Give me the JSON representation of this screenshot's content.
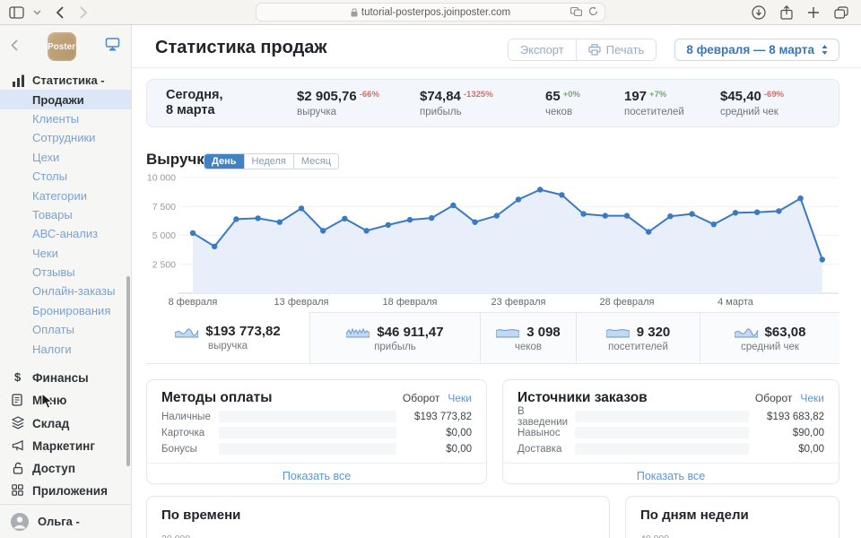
{
  "browser": {
    "url": "tutorial-posterpos.joinposter.com"
  },
  "sidebar": {
    "logo_text": "Poster",
    "menu_header": "Статистика -",
    "active_item": "Продажи",
    "menu_items": [
      "Продажи",
      "Клиенты",
      "Сотрудники",
      "Цехи",
      "Столы",
      "Категории",
      "Товары",
      "АВС-анализ",
      "Чеки",
      "Отзывы",
      "Онлайн-заказы",
      "Бронирования",
      "Оплаты",
      "Налоги"
    ],
    "sections": [
      "Финансы",
      "Меню",
      "Склад",
      "Маркетинг",
      "Доступ",
      "Приложения"
    ],
    "user_name": "Ольга -"
  },
  "header": {
    "title": "Статистика продаж",
    "export_label": "Экспорт",
    "print_label": "Печать",
    "date_range": "8 февраля — 8 марта"
  },
  "today": {
    "title_line1": "Сегодня,",
    "title_line2": "8 марта",
    "stats": [
      {
        "value": "$2 905,76",
        "delta": "-66%",
        "trend": "down",
        "label": "выручка"
      },
      {
        "value": "$74,84",
        "delta": "-1325%",
        "trend": "down",
        "label": "прибыль"
      },
      {
        "value": "65",
        "delta": "+0%",
        "trend": "up",
        "label": "чеков"
      },
      {
        "value": "197",
        "delta": "+7%",
        "trend": "up",
        "label": "посетителей"
      },
      {
        "value": "$45,40",
        "delta": "-69%",
        "trend": "down",
        "label": "средний чек"
      }
    ]
  },
  "revenue": {
    "title": "Выручка",
    "tabs": [
      {
        "label": "День",
        "active": true
      },
      {
        "label": "Неделя",
        "active": false
      },
      {
        "label": "Месяц",
        "active": false
      }
    ]
  },
  "chart_data": [
    {
      "type": "line",
      "title": "Выручка",
      "series_name": "выручка по дням",
      "x": [
        "8 февраля",
        "9 февраля",
        "10 февраля",
        "11 февраля",
        "12 февраля",
        "13 февраля",
        "14 февраля",
        "15 февраля",
        "16 февраля",
        "17 февраля",
        "18 февраля",
        "19 февраля",
        "20 февраля",
        "21 февраля",
        "22 февраля",
        "23 февраля",
        "24 февраля",
        "25 февраля",
        "26 февраля",
        "27 февраля",
        "28 февраля",
        "29 февраля",
        "1 марта",
        "2 марта",
        "3 марта",
        "4 марта",
        "5 марта",
        "6 марта",
        "7 марта",
        "8 марта"
      ],
      "values": [
        5200,
        4050,
        6400,
        6480,
        6150,
        7330,
        5400,
        6450,
        5400,
        5900,
        6350,
        6500,
        7600,
        6150,
        6700,
        8100,
        8950,
        8500,
        6850,
        6700,
        6700,
        5300,
        6650,
        6850,
        5950,
        6950,
        7000,
        7100,
        8200,
        2906
      ],
      "ylim": [
        0,
        10000
      ],
      "yticks": [
        2500,
        5000,
        7500,
        10000
      ],
      "ytick_labels": [
        "2 500",
        "5 000",
        "7 500",
        "10 000"
      ],
      "x_tick_indices": [
        0,
        5,
        10,
        15,
        20,
        25
      ],
      "x_tick_labels": [
        "8 февраля",
        "13 февраля",
        "18 февраля",
        "23 февраля",
        "28 февраля",
        "4 марта"
      ],
      "grid": true,
      "legend": "none",
      "area_fill": true
    },
    {
      "type": "line",
      "title": "По времени",
      "first_ytick": "20 000",
      "note": "partially visible below viewport"
    },
    {
      "type": "line",
      "title": "По дням недели",
      "first_ytick": "40 000",
      "note": "partially visible below viewport"
    }
  ],
  "summary": [
    {
      "value": "$193 773,82",
      "label": "выручка",
      "active": true
    },
    {
      "value": "$46 911,47",
      "label": "прибыль",
      "active": false
    },
    {
      "value": "3 098",
      "label": "чеков",
      "active": false
    },
    {
      "value": "9 320",
      "label": "посетителей",
      "active": false
    },
    {
      "value": "$63,08",
      "label": "средний чек",
      "active": false
    }
  ],
  "panels": [
    {
      "title": "Методы оплаты",
      "toggle_active": "Оборот",
      "toggle_inactive": "Чеки",
      "show_all": "Показать все",
      "rows": [
        {
          "label": "Наличные",
          "value": "$193 773,82",
          "fraction": 1
        },
        {
          "label": "Карточка",
          "value": "$0,00",
          "fraction": 0
        },
        {
          "label": "Бонусы",
          "value": "$0,00",
          "fraction": 0
        }
      ]
    },
    {
      "title": "Источники заказов",
      "toggle_active": "Оборот",
      "toggle_inactive": "Чеки",
      "show_all": "Показать все",
      "rows": [
        {
          "label": "В заведении",
          "value": "$193 683,82",
          "fraction": 0.9995
        },
        {
          "label": "Навынос",
          "value": "$90,00",
          "fraction": 0.0005
        },
        {
          "label": "Доставка",
          "value": "$0,00",
          "fraction": 0
        }
      ]
    }
  ],
  "bottom_charts": [
    {
      "title": "По времени",
      "first_ytick": "20 000"
    },
    {
      "title": "По дням недели",
      "first_ytick": "40 000"
    }
  ],
  "colors": {
    "accent_blue": "#3a79c4",
    "link_blue": "#7aa3d1",
    "panel_link_blue": "#5d96d6",
    "active_bg": "#dbe7f6",
    "positive": "#7aa37a",
    "negative": "#d0706b",
    "bar_fill": "#447fc8",
    "area_fill": "#e9effa"
  }
}
